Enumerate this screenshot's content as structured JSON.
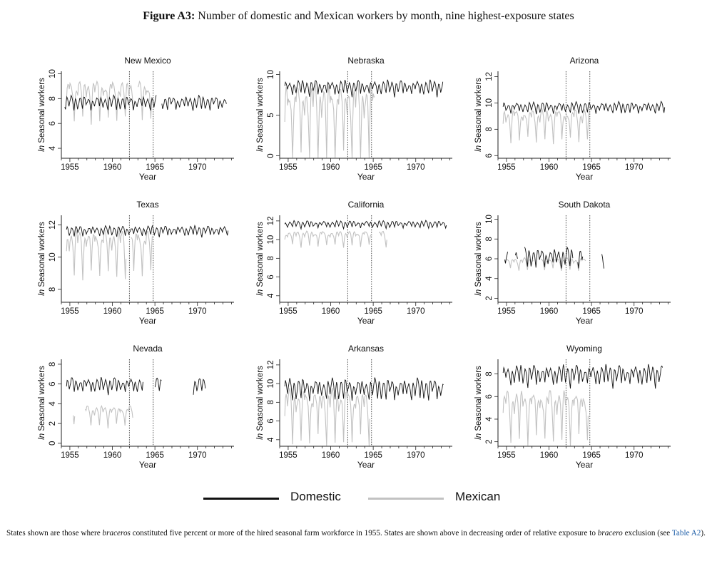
{
  "figure": {
    "label": "Figure A3:",
    "title": "Number of domestic and Mexican workers by month, nine highest-exposure states"
  },
  "legend": {
    "items": [
      {
        "label": "Domestic",
        "color": "#111111"
      },
      {
        "label": "Mexican",
        "color": "#c2c2c2"
      }
    ]
  },
  "note": {
    "part1": "States shown are those where ",
    "em1": "braceros",
    "part2": " constituted five percent or more of the hired seasonal farm workforce in 1955. States are shown above in decreasing order of relative exposure to ",
    "em2": "bracero",
    "part3": " exclusion (see ",
    "link": "Table A2",
    "part4": ")."
  },
  "chart_data": [
    {
      "type": "line",
      "title": "New Mexico",
      "xlabel": "Year",
      "ylabel_prefix": "ln",
      "ylabel": "Seasonal workers",
      "xticks": [
        1955,
        1960,
        1965,
        1970
      ],
      "yticks": [
        4,
        6,
        8,
        10
      ],
      "xlim": [
        1954.0,
        1974.3
      ],
      "ylim": [
        3.2,
        10.2
      ],
      "vlines": [
        1962.0,
        1964.8
      ],
      "domestic": {
        "level": 7.6,
        "amp": 0.8,
        "start": 1954.4,
        "end": 1973.4,
        "gaps": [
          [
            1965.2,
            1965.8
          ]
        ]
      },
      "mexican": {
        "level": 8.2,
        "amp": 1.6,
        "start": 1954.6,
        "end": 1964.6,
        "gaps": [
          [
            1962.5,
            1963.0
          ]
        ]
      }
    },
    {
      "type": "line",
      "title": "Nebraska",
      "xlabel": "Year",
      "ylabel_prefix": "ln",
      "ylabel": "Seasonal workers",
      "xticks": [
        1955,
        1960,
        1965,
        1970
      ],
      "yticks": [
        0,
        5,
        10
      ],
      "xlim": [
        1954.0,
        1974.3
      ],
      "ylim": [
        -0.3,
        10.4
      ],
      "vlines": [
        1962.0,
        1964.8
      ],
      "domestic": {
        "level": 8.3,
        "amp": 1.3,
        "start": 1954.6,
        "end": 1973.2,
        "gaps": []
      },
      "mexican": {
        "level": 5.2,
        "amp": 4.8,
        "start": 1954.6,
        "end": 1965.2,
        "gaps": []
      }
    },
    {
      "type": "line",
      "title": "Arizona",
      "xlabel": "Year",
      "ylabel_prefix": "ln",
      "ylabel": "Seasonal workers",
      "xticks": [
        1955,
        1960,
        1965,
        1970
      ],
      "yticks": [
        6,
        8,
        10,
        12
      ],
      "xlim": [
        1954.0,
        1974.3
      ],
      "ylim": [
        5.8,
        12.4
      ],
      "vlines": [
        1962.0,
        1964.8
      ],
      "domestic": {
        "level": 9.6,
        "amp": 0.6,
        "start": 1954.6,
        "end": 1973.6,
        "gaps": []
      },
      "mexican": {
        "level": 8.6,
        "amp": 1.2,
        "start": 1954.6,
        "end": 1964.8,
        "gaps": []
      }
    },
    {
      "type": "line",
      "title": "Texas",
      "xlabel": "Year",
      "ylabel_prefix": "ln",
      "ylabel": "Seasonal workers",
      "xticks": [
        1955,
        1960,
        1965,
        1970
      ],
      "yticks": [
        8,
        10,
        12
      ],
      "xlim": [
        1954.0,
        1974.3
      ],
      "ylim": [
        7.2,
        12.6
      ],
      "vlines": [
        1962.0,
        1964.8
      ],
      "domestic": {
        "level": 11.6,
        "amp": 0.45,
        "start": 1954.6,
        "end": 1973.6,
        "gaps": []
      },
      "mexican": {
        "level": 10.6,
        "amp": 1.4,
        "start": 1954.6,
        "end": 1964.8,
        "gaps": [
          [
            1961.6,
            1962.1
          ]
        ]
      }
    },
    {
      "type": "line",
      "title": "California",
      "xlabel": "Year",
      "ylabel_prefix": "ln",
      "ylabel": "Seasonal workers",
      "xticks": [
        1955,
        1960,
        1965,
        1970
      ],
      "yticks": [
        4,
        6,
        8,
        10,
        12
      ],
      "xlim": [
        1954.0,
        1974.3
      ],
      "ylim": [
        3.3,
        12.6
      ],
      "vlines": [
        1962.0,
        1964.8
      ],
      "domestic": {
        "level": 11.6,
        "amp": 0.55,
        "start": 1954.6,
        "end": 1973.6,
        "gaps": []
      },
      "mexican": {
        "level": 10.3,
        "amp": 0.8,
        "start": 1954.6,
        "end": 1966.6,
        "gaps": [
          [
            1964.9,
            1965.6
          ]
        ]
      }
    },
    {
      "type": "line",
      "title": "South Dakota",
      "xlabel": "Year",
      "ylabel_prefix": "ln",
      "ylabel": "Seasonal workers",
      "xticks": [
        1955,
        1960,
        1965,
        1970
      ],
      "yticks": [
        2,
        4,
        6,
        8,
        10
      ],
      "xlim": [
        1954.0,
        1974.3
      ],
      "ylim": [
        1.6,
        10.4
      ],
      "vlines": [
        1962.0,
        1964.8
      ],
      "domestic": {
        "level": 6.0,
        "amp": 1.4,
        "start": 1954.8,
        "end": 1966.5,
        "gaps": [
          [
            1955.2,
            1956.0
          ],
          [
            1956.3,
            1957.1
          ],
          [
            1962.8,
            1963.3
          ],
          [
            1964.0,
            1966.2
          ]
        ]
      },
      "mexican": {
        "level": 5.6,
        "amp": 0.6,
        "start": 1954.8,
        "end": 1964.3,
        "gaps": [
          [
            1958.2,
            1959.0
          ]
        ]
      }
    },
    {
      "type": "line",
      "title": "Nevada",
      "xlabel": "Year",
      "ylabel_prefix": "ln",
      "ylabel": "Seasonal workers",
      "xticks": [
        1955,
        1960,
        1965,
        1970
      ],
      "yticks": [
        0,
        2,
        4,
        6,
        8
      ],
      "xlim": [
        1954.0,
        1974.3
      ],
      "ylim": [
        -0.3,
        8.5
      ],
      "vlines": [
        1962.0,
        1964.8
      ],
      "domestic": {
        "level": 5.8,
        "amp": 1.1,
        "start": 1954.6,
        "end": 1971.0,
        "gaps": [
          [
            1963.6,
            1965.0
          ],
          [
            1965.8,
            1969.5
          ]
        ]
      },
      "mexican": {
        "level": 3.0,
        "amp": 1.0,
        "start": 1955.4,
        "end": 1962.4,
        "gaps": [
          [
            1955.6,
            1956.8
          ]
        ]
      }
    },
    {
      "type": "line",
      "title": "Arkansas",
      "xlabel": "Year",
      "ylabel_prefix": "ln",
      "ylabel": "Seasonal workers",
      "xticks": [
        1955,
        1960,
        1965,
        1970
      ],
      "yticks": [
        4,
        6,
        8,
        10,
        12
      ],
      "xlim": [
        1954.0,
        1974.3
      ],
      "ylim": [
        3.3,
        12.6
      ],
      "vlines": [
        1962.0,
        1964.8
      ],
      "domestic": {
        "level": 9.3,
        "amp": 1.6,
        "start": 1954.6,
        "end": 1973.3,
        "gaps": []
      },
      "mexican": {
        "level": 7.2,
        "amp": 2.8,
        "start": 1954.6,
        "end": 1964.6,
        "gaps": []
      }
    },
    {
      "type": "line",
      "title": "Wyoming",
      "xlabel": "Year",
      "ylabel_prefix": "ln",
      "ylabel": "Seasonal workers",
      "xticks": [
        1955,
        1960,
        1965,
        1970
      ],
      "yticks": [
        2,
        4,
        6,
        8
      ],
      "xlim": [
        1954.0,
        1974.3
      ],
      "ylim": [
        1.6,
        9.3
      ],
      "vlines": [
        1962.0,
        1964.8
      ],
      "domestic": {
        "level": 7.8,
        "amp": 1.3,
        "start": 1954.6,
        "end": 1973.4,
        "gaps": []
      },
      "mexican": {
        "level": 4.8,
        "amp": 2.2,
        "start": 1954.6,
        "end": 1964.6,
        "gaps": []
      }
    }
  ]
}
